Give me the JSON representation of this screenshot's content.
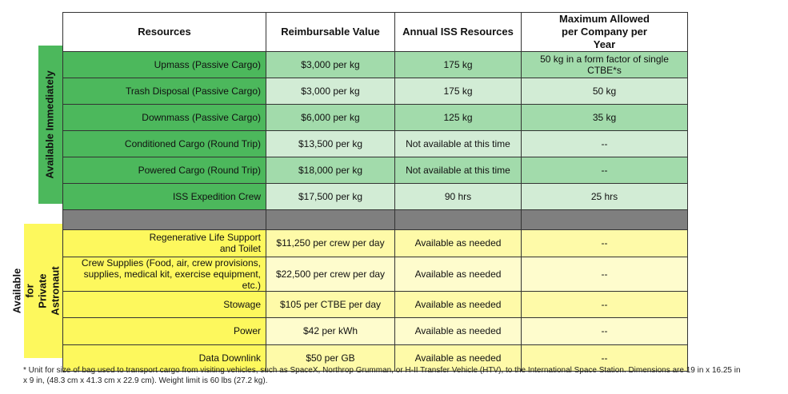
{
  "headers": [
    "Resources",
    "Reimbursable Value",
    "Annual ISS Resources",
    "Maximum Allowed per Company per Year"
  ],
  "group_immediate": {
    "label": "Available Immediately",
    "color": "#4cb85c",
    "rows": [
      {
        "resource": "Upmass (Passive Cargo)",
        "value": "$3,000 per kg",
        "annual": "175 kg",
        "max": "50 kg in a form factor of single CTBE*s"
      },
      {
        "resource": "Trash Disposal (Passive Cargo)",
        "value": "$3,000 per kg",
        "annual": "175 kg",
        "max": "50 kg"
      },
      {
        "resource": "Downmass (Passive Cargo)",
        "value": "$6,000 per kg",
        "annual": "125 kg",
        "max": "35 kg"
      },
      {
        "resource": "Conditioned Cargo (Round Trip)",
        "value": "$13,500 per kg",
        "annual": "Not available at this time",
        "max": "--"
      },
      {
        "resource": "Powered Cargo (Round Trip)",
        "value": "$18,000 per kg",
        "annual": "Not available at this time",
        "max": "--"
      },
      {
        "resource": "ISS Expedition Crew",
        "value": "$17,500 per kg",
        "annual": "90 hrs",
        "max": "25 hrs"
      }
    ]
  },
  "group_private": {
    "label": "Available for Private Astronaut Missions",
    "color": "#fdf85d",
    "rows": [
      {
        "resource": "Regenerative Life Support and Toilet",
        "value": "$11,250 per crew per day",
        "annual": "Available as needed",
        "max": "--"
      },
      {
        "resource": "Crew Supplies (Food, air, crew provisions, supplies, medical kit, exercise equipment, etc.)",
        "value": "$22,500 per crew per day",
        "annual": "Available as needed",
        "max": "--"
      },
      {
        "resource": "Stowage",
        "value": "$105 per CTBE per day",
        "annual": "Available as needed",
        "max": "--"
      },
      {
        "resource": "Power",
        "value": "$42 per kWh",
        "annual": "Available as needed",
        "max": "--"
      },
      {
        "resource": "Data Downlink",
        "value": "$50 per GB",
        "annual": "Available as needed",
        "max": "--"
      }
    ]
  },
  "footnote": "* Unit for size of bag used to transport cargo from visiting vehicles, such as SpaceX, Northrop Grumman, or H-II Transfer Vehicle (HTV), to the International Space Station. Dimensions are 19 in x 16.25 in x 9 in, (48.3 cm x 41.3 cm x 22.9 cm). Weight limit is 60 lbs (27.2 kg)."
}
